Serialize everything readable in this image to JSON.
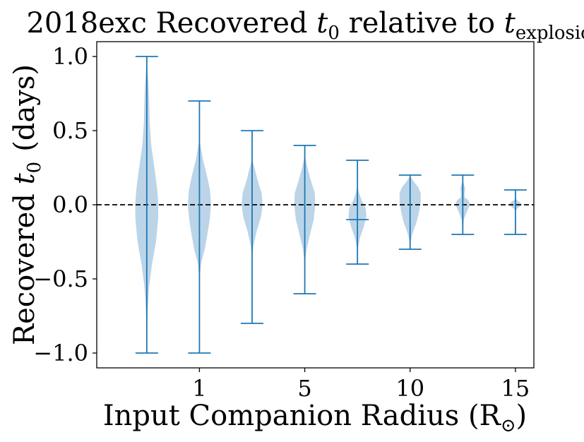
{
  "chart_data": {
    "type": "violin",
    "title_prefix": "2018exc Recovered ",
    "title_mid": " relative to ",
    "title_t0": "t",
    "title_t0_sub": "0",
    "title_texp": "t",
    "title_texp_sub": "explosion",
    "xlabel": "Input Companion Radius (R",
    "xlabel_sub": "⊙",
    "xlabel_close": ")",
    "ylabel_prefix": "Recovered ",
    "ylabel_t": "t",
    "ylabel_sub": "0",
    "ylabel_suffix": "(days)",
    "ylim": [
      -1.1,
      1.1
    ],
    "yticks": [
      1.0,
      0.5,
      0.0,
      -0.5,
      -1.0
    ],
    "ytick_labels": [
      "1.0",
      "0.5",
      "0.0",
      "−0.5",
      "−1.0"
    ],
    "xlim": [
      0.05,
      8.35
    ],
    "xticks": [
      {
        "pos": 2,
        "label": "1"
      },
      {
        "pos": 4,
        "label": "5"
      },
      {
        "pos": 6,
        "label": "10"
      },
      {
        "pos": 8,
        "label": "15"
      }
    ],
    "reference_line": 0.0,
    "colors": {
      "body": "#a8c8e2",
      "line": "#1f77b4",
      "ref": "#000000"
    },
    "violins": [
      {
        "pos": 1,
        "min": -1.0,
        "max": 1.0,
        "median": null,
        "profile": [
          [
            -0.95,
            0.003
          ],
          [
            -0.85,
            0.006
          ],
          [
            -0.7,
            0.018
          ],
          [
            -0.55,
            0.045
          ],
          [
            -0.4,
            0.1
          ],
          [
            -0.25,
            0.175
          ],
          [
            -0.1,
            0.215
          ],
          [
            0.0,
            0.22
          ],
          [
            0.1,
            0.2
          ],
          [
            0.25,
            0.145
          ],
          [
            0.4,
            0.085
          ],
          [
            0.55,
            0.055
          ],
          [
            0.7,
            0.045
          ],
          [
            0.8,
            0.035
          ],
          [
            0.9,
            0.015
          ],
          [
            0.97,
            0.004
          ]
        ]
      },
      {
        "pos": 2,
        "min": -1.0,
        "max": 0.7,
        "median": null,
        "profile": [
          [
            -0.5,
            0.004
          ],
          [
            -0.4,
            0.028
          ],
          [
            -0.3,
            0.1
          ],
          [
            -0.2,
            0.15
          ],
          [
            -0.1,
            0.195
          ],
          [
            0.0,
            0.22
          ],
          [
            0.1,
            0.2
          ],
          [
            0.2,
            0.14
          ],
          [
            0.3,
            0.07
          ],
          [
            0.38,
            0.03
          ],
          [
            0.42,
            0.008
          ]
        ]
      },
      {
        "pos": 3,
        "min": -0.8,
        "max": 0.5,
        "median": null,
        "profile": [
          [
            -0.35,
            0.005
          ],
          [
            -0.28,
            0.025
          ],
          [
            -0.18,
            0.085
          ],
          [
            -0.08,
            0.17
          ],
          [
            0.0,
            0.2
          ],
          [
            0.08,
            0.18
          ],
          [
            0.17,
            0.1
          ],
          [
            0.25,
            0.045
          ],
          [
            0.3,
            0.006
          ]
        ]
      },
      {
        "pos": 4,
        "min": -0.6,
        "max": 0.4,
        "median": null,
        "profile": [
          [
            -0.38,
            0.005
          ],
          [
            -0.3,
            0.035
          ],
          [
            -0.2,
            0.1
          ],
          [
            -0.1,
            0.17
          ],
          [
            0.0,
            0.2
          ],
          [
            0.08,
            0.19
          ],
          [
            0.17,
            0.11
          ],
          [
            0.25,
            0.05
          ],
          [
            0.32,
            0.008
          ]
        ]
      },
      {
        "pos": 5,
        "min": -0.4,
        "max": 0.3,
        "median": -0.1,
        "profile": [
          [
            -0.3,
            0.005
          ],
          [
            -0.22,
            0.05
          ],
          [
            -0.15,
            0.12
          ],
          [
            -0.08,
            0.17
          ],
          [
            -0.02,
            0.155
          ],
          [
            0.03,
            0.08
          ],
          [
            0.08,
            0.03
          ],
          [
            0.12,
            0.006
          ]
        ]
      },
      {
        "pos": 6,
        "min": -0.3,
        "max": 0.2,
        "median": null,
        "profile": [
          [
            -0.26,
            0.004
          ],
          [
            -0.2,
            0.04
          ],
          [
            -0.12,
            0.12
          ],
          [
            -0.05,
            0.17
          ],
          [
            0.02,
            0.2
          ],
          [
            0.08,
            0.2
          ],
          [
            0.12,
            0.15
          ],
          [
            0.16,
            0.06
          ],
          [
            0.19,
            0.008
          ]
        ]
      },
      {
        "pos": 7,
        "min": -0.2,
        "max": 0.2,
        "median": null,
        "profile": [
          [
            -0.18,
            0.003
          ],
          [
            -0.1,
            0.02
          ],
          [
            -0.04,
            0.085
          ],
          [
            0.0,
            0.14
          ],
          [
            0.03,
            0.11
          ],
          [
            0.05,
            0.035
          ],
          [
            0.08,
            0.035
          ],
          [
            0.11,
            0.045
          ],
          [
            0.15,
            0.012
          ],
          [
            0.18,
            0.002
          ]
        ]
      },
      {
        "pos": 8,
        "min": -0.2,
        "max": 0.1,
        "median": null,
        "profile": [
          [
            -0.04,
            0.003
          ],
          [
            -0.02,
            0.05
          ],
          [
            0.0,
            0.13
          ],
          [
            0.02,
            0.07
          ],
          [
            0.04,
            0.004
          ]
        ]
      }
    ]
  }
}
